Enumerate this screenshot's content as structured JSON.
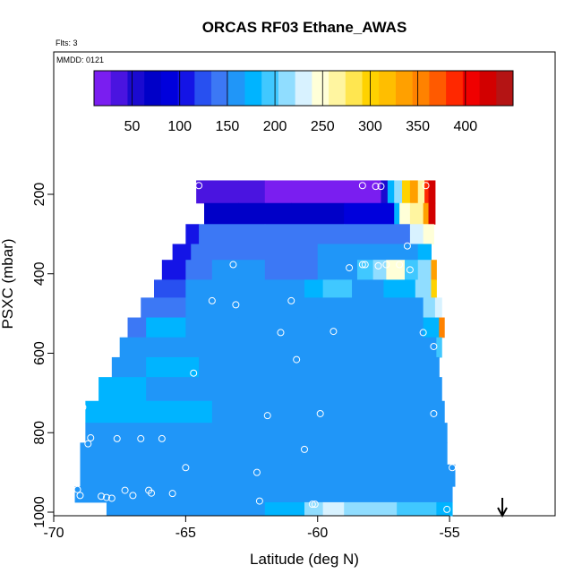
{
  "chart_data": {
    "type": "heatmap",
    "title": "ORCAS RF03 Ethane_AWAS",
    "flights_label": "Flts: 3",
    "date_label": "MMDD: 0121",
    "xlabel": "Latitude (deg N)",
    "ylabel": "PSXC (mbar)",
    "xlim": [
      -70,
      -51
    ],
    "ylim": [
      1010,
      70
    ],
    "x_ticks": [
      "-70",
      "-65",
      "-60",
      "-55"
    ],
    "x_tick_values": [
      -70,
      -65,
      -60,
      -55
    ],
    "y_ticks": [
      "200",
      "400",
      "600",
      "800",
      "1000"
    ],
    "y_tick_values": [
      200,
      400,
      600,
      800,
      1000
    ],
    "colorbar": {
      "min": 10,
      "max": 450,
      "tick_labels": [
        "50",
        "100",
        "150",
        "200",
        "250",
        "300",
        "350",
        "400"
      ],
      "tick_values": [
        50,
        100,
        150,
        200,
        250,
        300,
        350,
        400
      ],
      "colors": [
        "#7a1ef0",
        "#4a14e0",
        "#1a0ad0",
        "#0000c8",
        "#0000dc",
        "#1414e6",
        "#2850f0",
        "#3c78f5",
        "#2096f8",
        "#00b4ff",
        "#40c8ff",
        "#90ddff",
        "#d8f2ff",
        "#ffffd8",
        "#fff5a0",
        "#ffe650",
        "#ffd200",
        "#ffbe00",
        "#ffa000",
        "#ff8200",
        "#ff5a00",
        "#ff2800",
        "#f00000",
        "#d20000",
        "#b41414"
      ]
    },
    "rows": [
      {
        "p_top": 165,
        "p_bot": 222,
        "segments": [
          {
            "x0": -64.6,
            "x1": -64.0,
            "v": 40
          },
          {
            "x0": -64.0,
            "x1": -63.0,
            "v": 30
          },
          {
            "x0": -63.0,
            "x1": -62.0,
            "v": 28
          },
          {
            "x0": -62.0,
            "x1": -61.0,
            "v": 25
          },
          {
            "x0": -61.0,
            "x1": -60.0,
            "v": 22
          },
          {
            "x0": -60.0,
            "x1": -59.0,
            "v": 18
          },
          {
            "x0": -59.0,
            "x1": -58.3,
            "v": 15
          },
          {
            "x0": -58.3,
            "x1": -57.6,
            "v": 10
          },
          {
            "x0": -57.6,
            "x1": -57.35,
            "v": 60
          },
          {
            "x0": -57.35,
            "x1": -57.1,
            "v": 175
          },
          {
            "x0": -57.1,
            "x1": -56.8,
            "v": 215
          },
          {
            "x0": -56.8,
            "x1": -56.5,
            "v": 300
          },
          {
            "x0": -56.5,
            "x1": -56.2,
            "v": 335
          },
          {
            "x0": -56.2,
            "x1": -55.95,
            "v": 270
          },
          {
            "x0": -55.95,
            "x1": -55.8,
            "v": 380
          },
          {
            "x0": -55.8,
            "x1": -55.55,
            "v": 430
          }
        ]
      },
      {
        "p_top": 222,
        "p_bot": 275,
        "segments": [
          {
            "x0": -64.3,
            "x1": -63.0,
            "v": 75
          },
          {
            "x0": -63.0,
            "x1": -61.0,
            "v": 78
          },
          {
            "x0": -61.0,
            "x1": -59.0,
            "v": 80
          },
          {
            "x0": -59.0,
            "x1": -57.1,
            "v": 85
          },
          {
            "x0": -57.1,
            "x1": -56.9,
            "v": 180
          },
          {
            "x0": -56.9,
            "x1": -56.5,
            "v": 250
          },
          {
            "x0": -56.5,
            "x1": -56.0,
            "v": 270
          },
          {
            "x0": -56.0,
            "x1": -55.8,
            "v": 330
          },
          {
            "x0": -55.8,
            "x1": -55.55,
            "v": 420
          }
        ]
      },
      {
        "p_top": 275,
        "p_bot": 325,
        "segments": [
          {
            "x0": -65.0,
            "x1": -64.5,
            "v": 100
          },
          {
            "x0": -64.5,
            "x1": -62.0,
            "v": 140
          },
          {
            "x0": -62.0,
            "x1": -59.0,
            "v": 145
          },
          {
            "x0": -59.0,
            "x1": -57.1,
            "v": 140
          },
          {
            "x0": -57.1,
            "x1": -56.5,
            "v": 150
          },
          {
            "x0": -56.5,
            "x1": -56.0,
            "v": 230
          },
          {
            "x0": -56.0,
            "x1": -55.6,
            "v": 245
          }
        ]
      },
      {
        "p_top": 325,
        "p_bot": 365,
        "segments": [
          {
            "x0": -65.5,
            "x1": -64.8,
            "v": 110
          },
          {
            "x0": -64.8,
            "x1": -63.0,
            "v": 140
          },
          {
            "x0": -63.0,
            "x1": -60.0,
            "v": 150
          },
          {
            "x0": -60.0,
            "x1": -58.0,
            "v": 155
          },
          {
            "x0": -58.0,
            "x1": -57.0,
            "v": 165
          },
          {
            "x0": -57.0,
            "x1": -56.2,
            "v": 160
          },
          {
            "x0": -56.2,
            "x1": -55.7,
            "v": 175
          }
        ]
      },
      {
        "p_top": 365,
        "p_bot": 415,
        "segments": [
          {
            "x0": -65.9,
            "x1": -65.0,
            "v": 115
          },
          {
            "x0": -65.0,
            "x1": -64.0,
            "v": 150
          },
          {
            "x0": -64.0,
            "x1": -62.0,
            "v": 155
          },
          {
            "x0": -62.0,
            "x1": -60.0,
            "v": 150
          },
          {
            "x0": -60.0,
            "x1": -58.5,
            "v": 160
          },
          {
            "x0": -58.5,
            "x1": -57.9,
            "v": 190
          },
          {
            "x0": -57.9,
            "x1": -57.4,
            "v": 215
          },
          {
            "x0": -57.4,
            "x1": -56.7,
            "v": 240
          },
          {
            "x0": -56.7,
            "x1": -56.2,
            "v": 200
          },
          {
            "x0": -56.2,
            "x1": -55.7,
            "v": 210
          },
          {
            "x0": -55.7,
            "x1": -55.5,
            "v": 340
          }
        ]
      },
      {
        "p_top": 415,
        "p_bot": 460,
        "segments": [
          {
            "x0": -66.2,
            "x1": -65.0,
            "v": 130
          },
          {
            "x0": -65.0,
            "x1": -63.0,
            "v": 155
          },
          {
            "x0": -63.0,
            "x1": -60.5,
            "v": 160
          },
          {
            "x0": -60.5,
            "x1": -59.8,
            "v": 170
          },
          {
            "x0": -59.8,
            "x1": -59.3,
            "v": 190
          },
          {
            "x0": -59.3,
            "x1": -58.7,
            "v": 200
          },
          {
            "x0": -58.7,
            "x1": -57.5,
            "v": 165
          },
          {
            "x0": -57.5,
            "x1": -56.3,
            "v": 175
          },
          {
            "x0": -56.3,
            "x1": -55.7,
            "v": 210
          },
          {
            "x0": -55.7,
            "x1": -55.5,
            "v": 300
          }
        ]
      },
      {
        "p_top": 460,
        "p_bot": 510,
        "segments": [
          {
            "x0": -66.7,
            "x1": -65.0,
            "v": 145
          },
          {
            "x0": -65.0,
            "x1": -63.0,
            "v": 160
          },
          {
            "x0": -63.0,
            "x1": -60.0,
            "v": 165
          },
          {
            "x0": -60.0,
            "x1": -58.0,
            "v": 160
          },
          {
            "x0": -58.0,
            "x1": -56.0,
            "v": 165
          },
          {
            "x0": -56.0,
            "x1": -55.55,
            "v": 210
          },
          {
            "x0": -55.55,
            "x1": -55.3,
            "v": 230
          }
        ]
      },
      {
        "p_top": 510,
        "p_bot": 560,
        "segments": [
          {
            "x0": -67.2,
            "x1": -66.5,
            "v": 150
          },
          {
            "x0": -66.5,
            "x1": -65.0,
            "v": 170
          },
          {
            "x0": -65.0,
            "x1": -63.0,
            "v": 165
          },
          {
            "x0": -63.0,
            "x1": -60.0,
            "v": 160
          },
          {
            "x0": -60.0,
            "x1": -57.5,
            "v": 160
          },
          {
            "x0": -57.5,
            "x1": -56.0,
            "v": 165
          },
          {
            "x0": -56.0,
            "x1": -55.4,
            "v": 175
          },
          {
            "x0": -55.4,
            "x1": -55.2,
            "v": 350
          }
        ]
      },
      {
        "p_top": 560,
        "p_bot": 610,
        "segments": [
          {
            "x0": -67.5,
            "x1": -66.0,
            "v": 160
          },
          {
            "x0": -66.0,
            "x1": -64.0,
            "v": 165
          },
          {
            "x0": -64.0,
            "x1": -61.0,
            "v": 160
          },
          {
            "x0": -61.0,
            "x1": -58.0,
            "v": 160
          },
          {
            "x0": -58.0,
            "x1": -55.5,
            "v": 165
          },
          {
            "x0": -55.5,
            "x1": -55.3,
            "v": 200
          }
        ]
      },
      {
        "p_top": 610,
        "p_bot": 660,
        "segments": [
          {
            "x0": -67.8,
            "x1": -66.5,
            "v": 165
          },
          {
            "x0": -66.5,
            "x1": -64.5,
            "v": 170
          },
          {
            "x0": -64.5,
            "x1": -62.0,
            "v": 160
          },
          {
            "x0": -62.0,
            "x1": -59.0,
            "v": 160
          },
          {
            "x0": -59.0,
            "x1": -55.4,
            "v": 162
          }
        ]
      },
      {
        "p_top": 660,
        "p_bot": 720,
        "segments": [
          {
            "x0": -68.3,
            "x1": -66.5,
            "v": 170
          },
          {
            "x0": -66.5,
            "x1": -64.0,
            "v": 165
          },
          {
            "x0": -64.0,
            "x1": -61.0,
            "v": 160
          },
          {
            "x0": -61.0,
            "x1": -58.0,
            "v": 160
          },
          {
            "x0": -58.0,
            "x1": -55.3,
            "v": 162
          }
        ]
      },
      {
        "p_top": 720,
        "p_bot": 775,
        "segments": [
          {
            "x0": -68.8,
            "x1": -67.0,
            "v": 175
          },
          {
            "x0": -67.0,
            "x1": -64.0,
            "v": 170
          },
          {
            "x0": -64.0,
            "x1": -61.0,
            "v": 165
          },
          {
            "x0": -61.0,
            "x1": -58.0,
            "v": 165
          },
          {
            "x0": -58.0,
            "x1": -55.2,
            "v": 168
          }
        ]
      },
      {
        "p_top": 775,
        "p_bot": 825,
        "segments": [
          {
            "x0": -68.8,
            "x1": -67.0,
            "v": 165
          },
          {
            "x0": -67.0,
            "x1": -64.0,
            "v": 160
          },
          {
            "x0": -64.0,
            "x1": -61.0,
            "v": 158
          },
          {
            "x0": -61.0,
            "x1": -58.0,
            "v": 160
          },
          {
            "x0": -58.0,
            "x1": -55.1,
            "v": 162
          }
        ]
      },
      {
        "p_top": 825,
        "p_bot": 880,
        "segments": [
          {
            "x0": -69.0,
            "x1": -67.0,
            "v": 160
          },
          {
            "x0": -67.0,
            "x1": -64.0,
            "v": 158
          },
          {
            "x0": -64.0,
            "x1": -61.0,
            "v": 155
          },
          {
            "x0": -61.0,
            "x1": -58.0,
            "v": 158
          },
          {
            "x0": -58.0,
            "x1": -55.1,
            "v": 160
          }
        ]
      },
      {
        "p_top": 880,
        "p_bot": 935,
        "segments": [
          {
            "x0": -69.0,
            "x1": -67.0,
            "v": 158
          },
          {
            "x0": -67.0,
            "x1": -64.0,
            "v": 155
          },
          {
            "x0": -64.0,
            "x1": -61.0,
            "v": 152
          },
          {
            "x0": -61.0,
            "x1": -58.0,
            "v": 155
          },
          {
            "x0": -58.0,
            "x1": -55.0,
            "v": 158
          },
          {
            "x0": -55.0,
            "x1": -54.8,
            "v": 165
          }
        ]
      },
      {
        "p_top": 935,
        "p_bot": 975,
        "segments": [
          {
            "x0": -69.2,
            "x1": -67.0,
            "v": 155
          },
          {
            "x0": -67.0,
            "x1": -64.0,
            "v": 158
          },
          {
            "x0": -64.0,
            "x1": -61.0,
            "v": 155
          },
          {
            "x0": -61.0,
            "x1": -58.0,
            "v": 155
          },
          {
            "x0": -58.0,
            "x1": -54.9,
            "v": 160
          }
        ]
      },
      {
        "p_top": 975,
        "p_bot": 1010,
        "segments": [
          {
            "x0": -68.0,
            "x1": -62.0,
            "v": 160
          },
          {
            "x0": -62.0,
            "x1": -60.5,
            "v": 170
          },
          {
            "x0": -60.5,
            "x1": -59.8,
            "v": 205
          },
          {
            "x0": -59.8,
            "x1": -59.0,
            "v": 225
          },
          {
            "x0": -59.0,
            "x1": -58.0,
            "v": 215
          },
          {
            "x0": -58.0,
            "x1": -57.0,
            "v": 205
          },
          {
            "x0": -57.0,
            "x1": -55.5,
            "v": 195
          },
          {
            "x0": -55.5,
            "x1": -54.9,
            "v": 185
          }
        ]
      }
    ],
    "samples": [
      {
        "x": -64.5,
        "y": 178
      },
      {
        "x": -58.3,
        "y": 178
      },
      {
        "x": -57.8,
        "y": 180
      },
      {
        "x": -57.6,
        "y": 180
      },
      {
        "x": -55.9,
        "y": 178
      },
      {
        "x": -56.6,
        "y": 330
      },
      {
        "x": -63.2,
        "y": 377
      },
      {
        "x": -58.8,
        "y": 385
      },
      {
        "x": -58.3,
        "y": 377
      },
      {
        "x": -58.2,
        "y": 377
      },
      {
        "x": -57.7,
        "y": 380
      },
      {
        "x": -57.4,
        "y": 377
      },
      {
        "x": -56.9,
        "y": 377
      },
      {
        "x": -56.5,
        "y": 390
      },
      {
        "x": -64.0,
        "y": 468
      },
      {
        "x": -61.0,
        "y": 468
      },
      {
        "x": -63.1,
        "y": 478
      },
      {
        "x": -61.4,
        "y": 548
      },
      {
        "x": -59.4,
        "y": 545
      },
      {
        "x": -56.0,
        "y": 548
      },
      {
        "x": -55.6,
        "y": 583
      },
      {
        "x": -60.8,
        "y": 616
      },
      {
        "x": -64.7,
        "y": 650
      },
      {
        "x": -61.9,
        "y": 757
      },
      {
        "x": -59.9,
        "y": 752
      },
      {
        "x": -55.6,
        "y": 752
      },
      {
        "x": -68.9,
        "y": 736
      },
      {
        "x": -68.6,
        "y": 813
      },
      {
        "x": -67.6,
        "y": 815
      },
      {
        "x": -66.7,
        "y": 815
      },
      {
        "x": -65.9,
        "y": 815
      },
      {
        "x": -68.7,
        "y": 828
      },
      {
        "x": -60.5,
        "y": 842
      },
      {
        "x": -65.0,
        "y": 888
      },
      {
        "x": -62.3,
        "y": 900
      },
      {
        "x": -54.9,
        "y": 888
      },
      {
        "x": -69.1,
        "y": 943
      },
      {
        "x": -67.3,
        "y": 945
      },
      {
        "x": -66.4,
        "y": 945
      },
      {
        "x": -66.3,
        "y": 952
      },
      {
        "x": -65.5,
        "y": 953
      },
      {
        "x": -67.0,
        "y": 958
      },
      {
        "x": -69.0,
        "y": 958
      },
      {
        "x": -68.2,
        "y": 960
      },
      {
        "x": -68.0,
        "y": 963
      },
      {
        "x": -67.8,
        "y": 965
      },
      {
        "x": -62.2,
        "y": 972
      },
      {
        "x": -60.2,
        "y": 980
      },
      {
        "x": -60.1,
        "y": 980
      },
      {
        "x": -55.1,
        "y": 993
      }
    ],
    "marker": {
      "x": -53.0
    }
  }
}
